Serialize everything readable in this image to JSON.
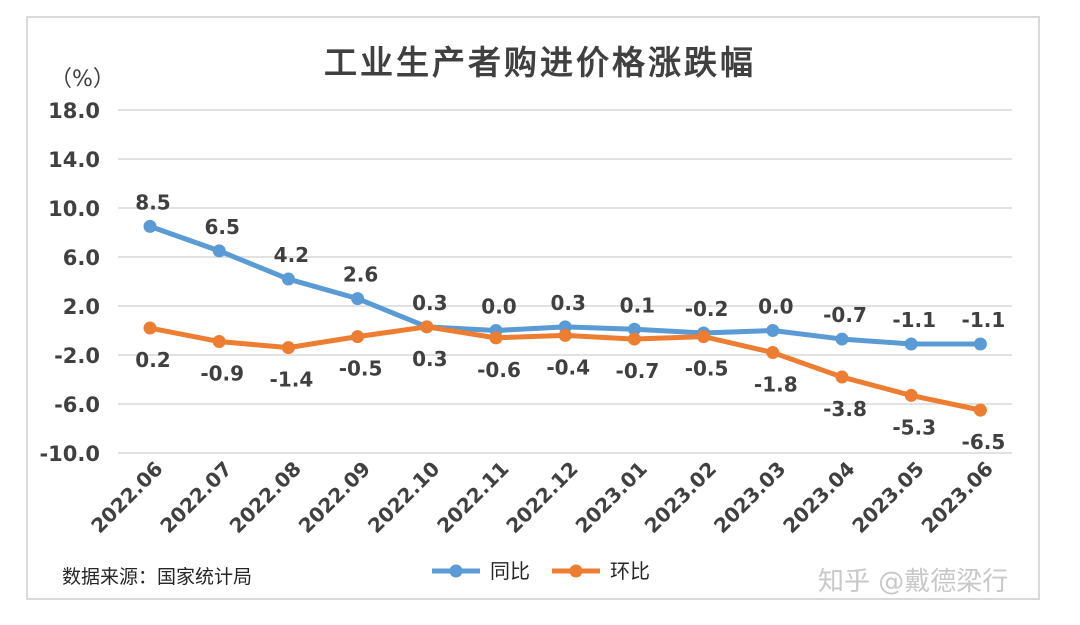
{
  "chart_data": {
    "type": "line",
    "title": "工业生产者购进价格涨跌幅",
    "unit_label": "（%）",
    "categories": [
      "2022.06",
      "2022.07",
      "2022.08",
      "2022.09",
      "2022.10",
      "2022.11",
      "2022.12",
      "2023.01",
      "2023.02",
      "2023.03",
      "2023.04",
      "2023.05",
      "2023.06"
    ],
    "series": [
      {
        "name": "同比",
        "color": "#5b9bd5",
        "values": [
          8.5,
          6.5,
          4.2,
          2.6,
          0.3,
          0.0,
          0.3,
          0.1,
          -0.2,
          0.0,
          -0.7,
          -1.1,
          -1.1
        ],
        "labels": [
          "8.5",
          "6.5",
          "4.2",
          "2.6",
          "0.3",
          "0.0",
          "0.3",
          "0.1",
          "-0.2",
          "0.0",
          "-0.7",
          "-1.1",
          "-1.1"
        ]
      },
      {
        "name": "环比",
        "color": "#ed7d31",
        "values": [
          0.2,
          -0.9,
          -1.4,
          -0.5,
          0.3,
          -0.6,
          -0.4,
          -0.7,
          -0.5,
          -1.8,
          -3.8,
          -5.3,
          -6.5
        ],
        "labels": [
          "0.2",
          "-0.9",
          "-1.4",
          "-0.5",
          "0.3",
          "-0.6",
          "-0.4",
          "-0.7",
          "-0.5",
          "-1.8",
          "-3.8",
          "-5.3",
          "-6.5"
        ]
      }
    ],
    "yticks": [
      "18.0",
      "14.0",
      "10.0",
      "6.0",
      "2.0",
      "-2.0",
      "-6.0",
      "-10.0"
    ],
    "ylim": [
      -10,
      18
    ],
    "grid": true,
    "legend_position": "bottom-center"
  },
  "source_note": "数据来源：国家统计局",
  "watermark": "知乎 @戴德梁行"
}
